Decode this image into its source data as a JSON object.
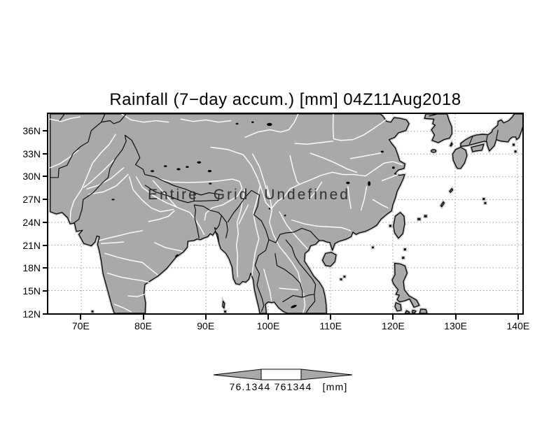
{
  "title": "Rainfall (7−day accum.) [mm] 04Z11Aug2018",
  "overlay_message": "Entire Grid Undefined",
  "axes": {
    "lat": [
      {
        "label": "36N",
        "value": 36
      },
      {
        "label": "33N",
        "value": 33
      },
      {
        "label": "30N",
        "value": 30
      },
      {
        "label": "27N",
        "value": 27
      },
      {
        "label": "24N",
        "value": 24
      },
      {
        "label": "21N",
        "value": 21
      },
      {
        "label": "18N",
        "value": 18
      },
      {
        "label": "15N",
        "value": 15
      },
      {
        "label": "12N",
        "value": 12
      }
    ],
    "lon": [
      {
        "label": "70E",
        "value": 70
      },
      {
        "label": "80E",
        "value": 80
      },
      {
        "label": "90E",
        "value": 90
      },
      {
        "label": "100E",
        "value": 100
      },
      {
        "label": "110E",
        "value": 110
      },
      {
        "label": "120E",
        "value": 120
      },
      {
        "label": "130E",
        "value": 130
      },
      {
        "label": "140E",
        "value": 140
      }
    ]
  },
  "colorbar": {
    "min_label": "76.1344",
    "max_label": "761344",
    "units_label": "[mm]"
  },
  "colors": {
    "land": "#a9a9a9",
    "land_fringe": "#c9c9c9",
    "ocean": "#ffffff",
    "coastline": "#000000",
    "rivers": "#ffffff",
    "graticule": "#9a9a9a",
    "text": "#000000",
    "overlay_text": "#303030"
  }
}
